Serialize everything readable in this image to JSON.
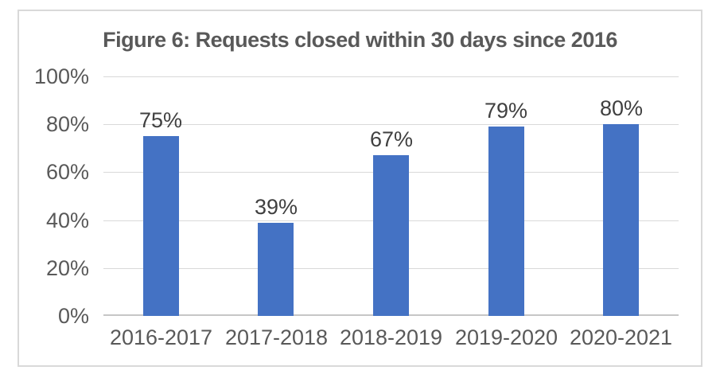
{
  "colors": {
    "bar": "#4472C4",
    "grid": "#D9D9D9",
    "axis_line": "#C6C6C6",
    "border": "#D9D9D9",
    "title": "#595959",
    "axis_label": "#595959",
    "data_label": "#404040",
    "background": "#FFFFFF"
  },
  "chart_data": {
    "type": "bar",
    "title": "Figure 6: Requests closed within 30 days since 2016",
    "categories": [
      "2016-2017",
      "2017-2018",
      "2018-2019",
      "2019-2020",
      "2020-2021"
    ],
    "values": [
      75,
      39,
      67,
      79,
      80
    ],
    "data_labels": [
      "75%",
      "39%",
      "67%",
      "79%",
      "80%"
    ],
    "y_ticks": [
      "100%",
      "80%",
      "60%",
      "40%",
      "20%",
      "0%"
    ],
    "xlabel": "",
    "ylabel": "",
    "ylim": [
      0,
      100
    ],
    "grid": true,
    "legend": false
  }
}
